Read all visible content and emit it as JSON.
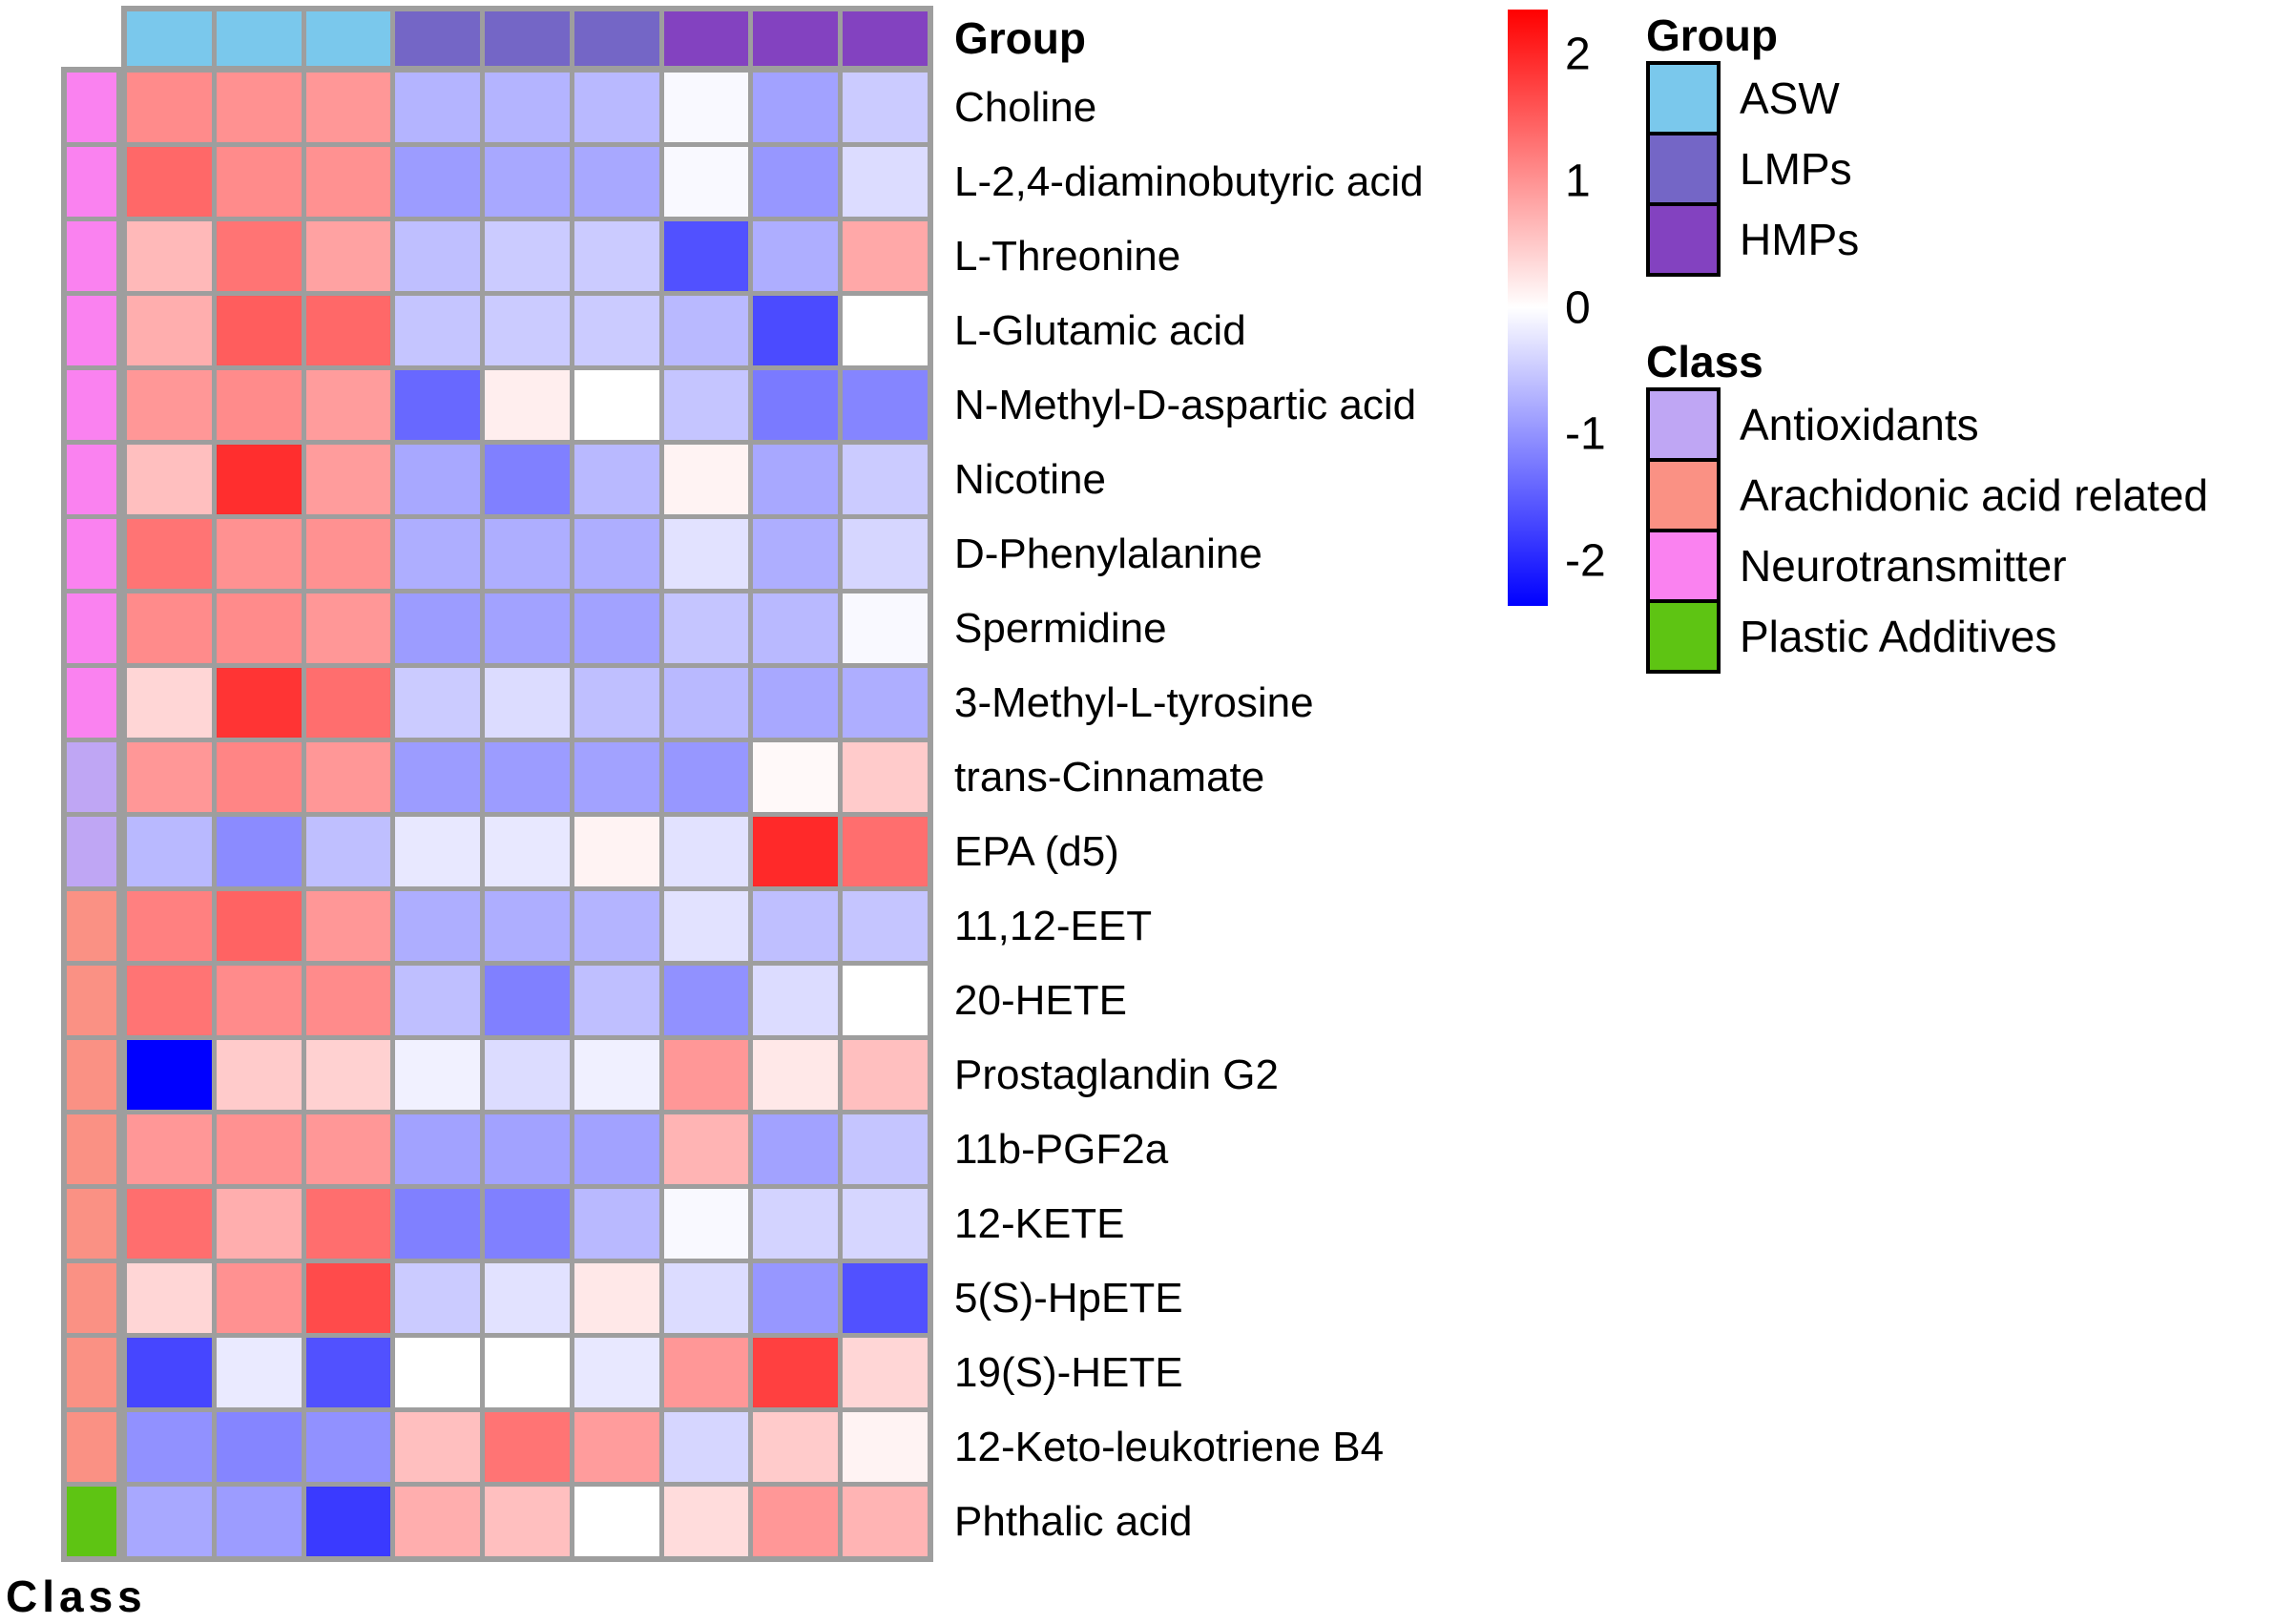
{
  "chart_data": {
    "type": "heatmap",
    "colormap": {
      "negative": "#0000ff",
      "zero": "#ffffff",
      "positive": "#ff0000",
      "value_limit": 2.2
    },
    "columns": {
      "annotation_title": "Group",
      "groups": [
        {
          "name": "ASW",
          "color": "#7ac8ec",
          "n_columns": 3
        },
        {
          "name": "LMPs",
          "color": "#7466c6",
          "n_columns": 3
        },
        {
          "name": "HMPs",
          "color": "#8342c0",
          "n_columns": 3
        }
      ]
    },
    "row_annotation_title": "Class",
    "classes": [
      {
        "name": "Antioxidants",
        "color": "#bfa6f4"
      },
      {
        "name": "Arachidonic acid related",
        "color": "#fa9184"
      },
      {
        "name": "Neurotransmitter",
        "color": "#fa82f0"
      },
      {
        "name": "Plastic Additives",
        "color": "#5ec413"
      }
    ],
    "rows": [
      {
        "label": "Choline",
        "class": "Neurotransmitter",
        "values": [
          1.0,
          0.95,
          0.9,
          -0.65,
          -0.65,
          -0.6,
          -0.05,
          -0.8,
          -0.45
        ]
      },
      {
        "label": "L-2,4-diaminobutyric acid",
        "class": "Neurotransmitter",
        "values": [
          1.3,
          1.0,
          0.95,
          -0.85,
          -0.75,
          -0.75,
          -0.05,
          -0.9,
          -0.3
        ]
      },
      {
        "label": "L-Threonine",
        "class": "Neurotransmitter",
        "values": [
          0.6,
          1.2,
          0.8,
          -0.55,
          -0.45,
          -0.45,
          -1.5,
          -0.7,
          0.75
        ]
      },
      {
        "label": "L-Glutamic acid",
        "class": "Neurotransmitter",
        "values": [
          0.7,
          1.4,
          1.3,
          -0.5,
          -0.45,
          -0.45,
          -0.6,
          -1.55,
          0.0
        ]
      },
      {
        "label": "N-Methyl-D-aspartic acid",
        "class": "Neurotransmitter",
        "values": [
          0.9,
          1.0,
          0.85,
          -1.3,
          0.15,
          0.0,
          -0.5,
          -1.15,
          -1.05
        ]
      },
      {
        "label": "Nicotine",
        "class": "Neurotransmitter",
        "values": [
          0.55,
          1.8,
          0.85,
          -0.75,
          -1.1,
          -0.6,
          0.1,
          -0.75,
          -0.45
        ]
      },
      {
        "label": "D-Phenylalanine",
        "class": "Neurotransmitter",
        "values": [
          1.2,
          0.95,
          0.95,
          -0.7,
          -0.7,
          -0.7,
          -0.25,
          -0.7,
          -0.35
        ]
      },
      {
        "label": "Spermidine",
        "class": "Neurotransmitter",
        "values": [
          1.0,
          1.0,
          0.9,
          -0.85,
          -0.8,
          -0.8,
          -0.5,
          -0.6,
          -0.05
        ]
      },
      {
        "label": "3-Methyl-L-tyrosine",
        "class": "Neurotransmitter",
        "values": [
          0.35,
          1.75,
          1.25,
          -0.45,
          -0.3,
          -0.55,
          -0.6,
          -0.75,
          -0.7
        ]
      },
      {
        "label": "trans-Cinnamate",
        "class": "Antioxidants",
        "values": [
          0.9,
          1.05,
          0.9,
          -0.85,
          -0.85,
          -0.8,
          -0.9,
          0.05,
          0.45
        ]
      },
      {
        "label": "EPA (d5)",
        "class": "Antioxidants",
        "values": [
          -0.6,
          -1.0,
          -0.55,
          -0.2,
          -0.2,
          0.1,
          -0.25,
          1.85,
          1.25
        ]
      },
      {
        "label": "11,12-EET",
        "class": "Arachidonic acid related",
        "values": [
          1.1,
          1.35,
          0.9,
          -0.7,
          -0.7,
          -0.65,
          -0.25,
          -0.55,
          -0.5
        ]
      },
      {
        "label": "20-HETE",
        "class": "Arachidonic acid related",
        "values": [
          1.2,
          1.0,
          1.0,
          -0.55,
          -1.1,
          -0.55,
          -0.95,
          -0.3,
          0.0
        ]
      },
      {
        "label": "Prostaglandin G2",
        "class": "Arachidonic acid related",
        "values": [
          -2.3,
          0.45,
          0.4,
          -0.12,
          -0.3,
          -0.13,
          0.9,
          0.2,
          0.55
        ]
      },
      {
        "label": "11b-PGF2a",
        "class": "Arachidonic acid related",
        "values": [
          0.9,
          0.95,
          0.9,
          -0.8,
          -0.8,
          -0.8,
          0.65,
          -0.8,
          -0.5
        ]
      },
      {
        "label": "12-KETE",
        "class": "Arachidonic acid related",
        "values": [
          1.25,
          0.7,
          1.25,
          -1.1,
          -1.1,
          -0.6,
          -0.05,
          -0.38,
          -0.35
        ]
      },
      {
        "label": "5(S)-HpETE",
        "class": "Arachidonic acid related",
        "values": [
          0.35,
          0.95,
          1.55,
          -0.45,
          -0.25,
          0.2,
          -0.3,
          -0.9,
          -1.5
        ]
      },
      {
        "label": "19(S)-HETE",
        "class": "Arachidonic acid related",
        "values": [
          -1.6,
          -0.18,
          -1.5,
          0.0,
          0.0,
          -0.2,
          0.9,
          1.65,
          0.35
        ]
      },
      {
        "label": "12-Keto-leukotriene B4",
        "class": "Arachidonic acid related",
        "values": [
          -0.95,
          -1.05,
          -0.95,
          0.55,
          1.2,
          0.85,
          -0.35,
          0.45,
          0.1
        ]
      },
      {
        "label": "Phthalic acid",
        "class": "Plastic Additives",
        "values": [
          -0.75,
          -0.85,
          -1.7,
          0.7,
          0.55,
          0.0,
          0.3,
          0.9,
          0.65
        ]
      }
    ],
    "colorbar": {
      "tick_labels": [
        "2",
        "1",
        "0",
        "-1",
        "-2"
      ],
      "tick_values": [
        2,
        1,
        0,
        -1,
        -2
      ],
      "top_value": 2.35,
      "bottom_value": -2.35
    }
  },
  "legend": {
    "group_title": "Group",
    "class_title": "Class"
  }
}
